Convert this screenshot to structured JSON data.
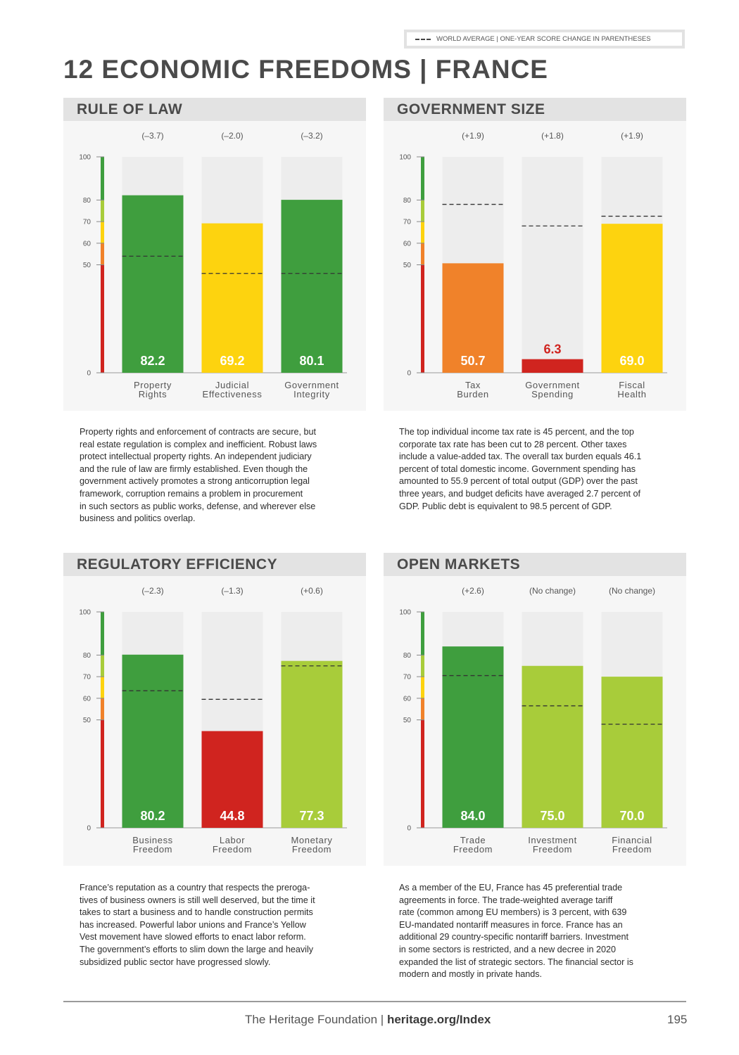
{
  "legend": {
    "text": "WORLD AVERAGE  |  ONE-YEAR SCORE CHANGE IN PARENTHESES"
  },
  "title": "12 ECONOMIC FREEDOMS  |  FRANCE",
  "colors": {
    "green": "#3f9e3e",
    "lightgreen": "#a8cc3a",
    "yellow": "#fdd30f",
    "orange": "#f0822a",
    "red": "#d0241f",
    "track": "#ededed",
    "panel_bg": "#f6f6f6"
  },
  "chart_data": [
    {
      "type": "bar",
      "title": "RULE OF LAW",
      "categories": [
        "Property Rights",
        "Judicial Effectiveness",
        "Government Integrity"
      ],
      "category_lines": [
        [
          "Property",
          "Rights"
        ],
        [
          "Judicial",
          "Effectiveness"
        ],
        [
          "Government",
          "Integrity"
        ]
      ],
      "values": [
        82.2,
        69.2,
        80.1
      ],
      "value_labels": [
        "82.2",
        "69.2",
        "80.1"
      ],
      "world_average": [
        54,
        46,
        46
      ],
      "changes": [
        "(–3.7)",
        "(–2.0)",
        "(–3.2)"
      ],
      "bar_colors": [
        "green",
        "yellow",
        "green"
      ],
      "ylim": [
        0,
        100
      ],
      "yticks": [
        0,
        50,
        60,
        70,
        80,
        100
      ]
    },
    {
      "type": "bar",
      "title": "GOVERNMENT SIZE",
      "categories": [
        "Tax Burden",
        "Government Spending",
        "Fiscal Health"
      ],
      "category_lines": [
        [
          "Tax",
          "Burden"
        ],
        [
          "Government",
          "Spending"
        ],
        [
          "Fiscal",
          "Health"
        ]
      ],
      "values": [
        50.7,
        6.3,
        69.0
      ],
      "value_labels": [
        "50.7",
        "6.3",
        "69.0"
      ],
      "world_average": [
        78,
        68,
        72.5
      ],
      "changes": [
        "(+1.9)",
        "(+1.8)",
        "(+1.9)"
      ],
      "bar_colors": [
        "orange",
        "red",
        "yellow"
      ],
      "ylim": [
        0,
        100
      ],
      "yticks": [
        0,
        50,
        60,
        70,
        80,
        100
      ]
    },
    {
      "type": "bar",
      "title": "REGULATORY EFFICIENCY",
      "categories": [
        "Business Freedom",
        "Labor Freedom",
        "Monetary Freedom"
      ],
      "category_lines": [
        [
          "Business",
          "Freedom"
        ],
        [
          "Labor",
          "Freedom"
        ],
        [
          "Monetary",
          "Freedom"
        ]
      ],
      "values": [
        80.2,
        44.8,
        77.3
      ],
      "value_labels": [
        "80.2",
        "44.8",
        "77.3"
      ],
      "world_average": [
        63.5,
        59.5,
        75
      ],
      "changes": [
        "(–2.3)",
        "(–1.3)",
        "(+0.6)"
      ],
      "bar_colors": [
        "green",
        "red",
        "lightgreen"
      ],
      "ylim": [
        0,
        100
      ],
      "yticks": [
        0,
        50,
        60,
        70,
        80,
        100
      ]
    },
    {
      "type": "bar",
      "title": "OPEN MARKETS",
      "categories": [
        "Trade Freedom",
        "Investment Freedom",
        "Financial Freedom"
      ],
      "category_lines": [
        [
          "Trade",
          "Freedom"
        ],
        [
          "Investment",
          "Freedom"
        ],
        [
          "Financial",
          "Freedom"
        ]
      ],
      "values": [
        84.0,
        75.0,
        70.0
      ],
      "value_labels": [
        "84.0",
        "75.0",
        "70.0"
      ],
      "world_average": [
        70.5,
        56.5,
        48
      ],
      "changes": [
        "(+2.6)",
        "(No change)",
        "(No change)"
      ],
      "bar_colors": [
        "green",
        "lightgreen",
        "lightgreen"
      ],
      "ylim": [
        0,
        100
      ],
      "yticks": [
        0,
        50,
        60,
        70,
        80,
        100
      ]
    }
  ],
  "descriptions": [
    [
      "Property rights and enforcement of contracts are secure, but",
      "real estate regulation is complex and inefficient. Robust laws",
      "protect intellectual property rights. An independent judiciary",
      "and the rule of law are firmly established. Even though the",
      "government actively promotes a strong anticorruption legal",
      "framework, corruption remains a problem in procurement",
      "in such sectors as public works, defense, and wherever else",
      "business and politics overlap."
    ],
    [
      "The top individual income tax rate is 45 percent, and the top",
      "corporate tax rate has been cut to 28 percent. Other taxes",
      "include a value-added tax. The overall tax burden equals 46.1",
      "percent of total domestic income. Government spending has",
      "amounted to 55.9 percent of total output (GDP) over the past",
      "three years, and budget deficits have averaged 2.7 percent of",
      "GDP. Public debt is equivalent to 98.5 percent of GDP."
    ],
    [
      "France’s reputation as a country that respects the preroga-",
      "tives of business owners is still well deserved, but the time it",
      "takes to start a business and to handle construction permits",
      "has increased. Powerful labor unions and France’s Yellow",
      "Vest movement have slowed efforts to enact labor reform.",
      "The government’s efforts to slim down the large and heavily",
      "subsidized public sector have progressed slowly."
    ],
    [
      "As a member of the EU, France has 45 preferential trade",
      "agreements in force. The trade-weighted average tariff",
      "rate (common among EU members) is 3 percent, with 639",
      "EU-mandated nontariff measures in force. France has an",
      "additional 29 country-specific nontariff barriers. Investment",
      "in some sectors is restricted, and a new decree in 2020",
      "expanded the list of strategic sectors. The financial sector is",
      "modern and mostly in private hands."
    ]
  ],
  "footer": {
    "org": "The Heritage Foundation | ",
    "url": "heritage.org/Index",
    "page": "195"
  }
}
